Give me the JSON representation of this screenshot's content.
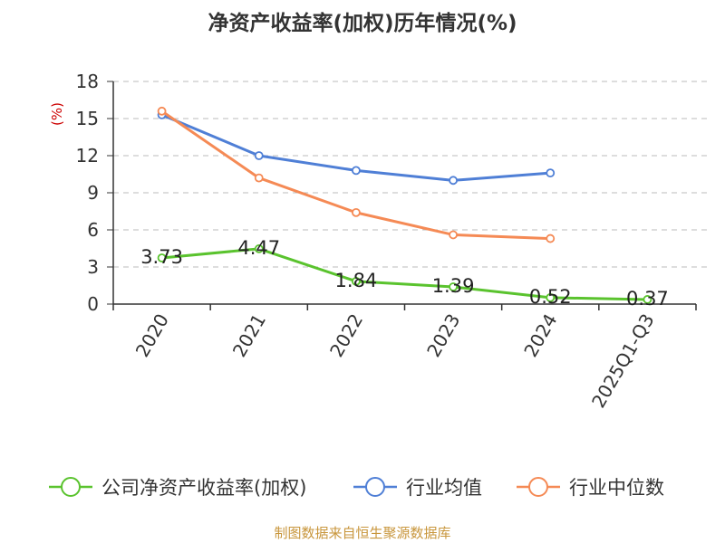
{
  "chart_data": {
    "type": "line",
    "title": "净资产收益率(加权)历年情况(%)",
    "ylabel": "(%)",
    "xlabel": "",
    "categories": [
      "2020",
      "2021",
      "2022",
      "2023",
      "2024",
      "2025Q1-Q3"
    ],
    "ylim": [
      0,
      18
    ],
    "yticks": [
      0,
      3,
      6,
      9,
      12,
      15,
      18
    ],
    "grid": true,
    "legend_position": "bottom",
    "series": [
      {
        "name": "公司净资产收益率(加权)",
        "color": "#5ac32e",
        "values": [
          3.73,
          4.47,
          1.84,
          1.39,
          0.52,
          0.37
        ],
        "labels": [
          "3.73",
          "4.47",
          "1.84",
          "1.39",
          "0.52",
          "0.37"
        ]
      },
      {
        "name": "行业均值",
        "color": "#4f7fd6",
        "values": [
          15.3,
          12.0,
          10.8,
          10.0,
          10.6,
          null
        ]
      },
      {
        "name": "行业中位数",
        "color": "#f58a55",
        "values": [
          15.6,
          10.2,
          7.4,
          5.6,
          5.3,
          null
        ]
      }
    ]
  },
  "colors": {
    "unit_label": "#cc0000",
    "source_text": "#c8963c",
    "axis": "#333333",
    "grid": "#bbbbbb"
  },
  "source_note": "制图数据来自恒生聚源数据库"
}
